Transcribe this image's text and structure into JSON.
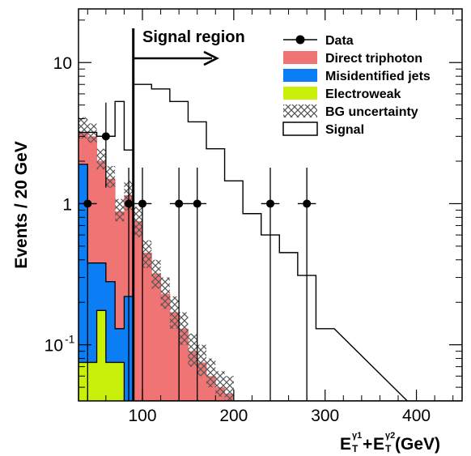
{
  "chart_data": {
    "type": "histogram",
    "ylabel": "Events / 20 GeV",
    "xlabel": {
      "prefix": "E",
      "t1_sub": "T",
      "t1_sup": "γ1",
      "plus": "+",
      "t2_sub": "T",
      "t2_sup": "γ2",
      "suffix": " (GeV)"
    },
    "xlim": [
      30,
      450
    ],
    "ylim": [
      0.04,
      24
    ],
    "y_scale": "log",
    "x_ticks": [
      {
        "value": 100,
        "label": "100"
      },
      {
        "value": 200,
        "label": "200"
      },
      {
        "value": 300,
        "label": "300"
      },
      {
        "value": 400,
        "label": "400"
      }
    ],
    "y_ticks": [
      {
        "value": 10,
        "label": "10"
      },
      {
        "value": 1,
        "label": "1"
      },
      {
        "value": 0.1,
        "label": "10",
        "sup": "-1"
      }
    ],
    "bin_width": 10,
    "bin_edges_start": 30,
    "electroweak": [
      0.075,
      0.075,
      0.175,
      0.075,
      0.075,
      0.04,
      0.04,
      0.04,
      0.04,
      0.04,
      0.04,
      0.04,
      0.04,
      0.04,
      0.04,
      0.04,
      0.04,
      0.04,
      0.04,
      0.04,
      0.04,
      0.04,
      0.04,
      0.04,
      0.04,
      0.04,
      0.04,
      0.04,
      0.04,
      0.04,
      0.04,
      0.04,
      0.04,
      0.04,
      0.04,
      0.04,
      0.04,
      0.04,
      0.04,
      0.04,
      0.04,
      0.04
    ],
    "misid_jets": [
      1.9,
      0.38,
      0.38,
      0.28,
      0.13,
      0.22,
      0.04,
      0.04,
      0.04,
      0.04,
      0.04,
      0.04,
      0.04,
      0.04,
      0.04,
      0.04,
      0.04,
      0.04,
      0.04,
      0.04,
      0.04,
      0.04,
      0.04,
      0.04,
      0.04,
      0.04,
      0.04,
      0.04,
      0.04,
      0.04,
      0.04,
      0.04,
      0.04,
      0.04,
      0.04,
      0.04,
      0.04,
      0.04,
      0.04,
      0.04,
      0.04,
      0.04
    ],
    "total_bg": [
      3.2,
      3.0,
      2.0,
      1.5,
      0.88,
      1.15,
      0.75,
      0.45,
      0.32,
      0.23,
      0.17,
      0.13,
      0.09,
      0.075,
      0.06,
      0.05,
      0.045,
      0.04,
      0.04,
      0.04,
      0.04,
      0.04,
      0.04,
      0.04,
      0.04,
      0.04,
      0.04,
      0.04,
      0.04,
      0.04,
      0.04,
      0.04,
      0.04,
      0.04,
      0.04,
      0.04,
      0.04,
      0.04,
      0.04,
      0.04,
      0.04,
      0.04
    ],
    "bg_unc_low": [
      2.9,
      2.7,
      1.75,
      1.3,
      0.75,
      0.9,
      0.58,
      0.35,
      0.25,
      0.18,
      0.13,
      0.1,
      0.07,
      0.06,
      0.05,
      0.043,
      0.04,
      0.04,
      0.04,
      0.04,
      0.04,
      0.04,
      0.04,
      0.04,
      0.04,
      0.04,
      0.04,
      0.04,
      0.04,
      0.04,
      0.04,
      0.04,
      0.04,
      0.04,
      0.04,
      0.04,
      0.04,
      0.04,
      0.04,
      0.04,
      0.04,
      0.04
    ],
    "bg_unc_high": [
      4.1,
      3.7,
      2.45,
      1.85,
      1.08,
      1.45,
      0.95,
      0.55,
      0.4,
      0.3,
      0.22,
      0.17,
      0.12,
      0.1,
      0.08,
      0.065,
      0.06,
      0.04,
      0.04,
      0.04,
      0.04,
      0.04,
      0.04,
      0.04,
      0.04,
      0.04,
      0.04,
      0.04,
      0.04,
      0.04,
      0.04,
      0.04,
      0.04,
      0.04,
      0.04,
      0.04,
      0.04,
      0.04,
      0.04,
      0.04,
      0.04,
      0.04
    ],
    "signal_x0": 90,
    "signal_bin_width": 20,
    "signal": [
      7.0,
      6.5,
      5.3,
      3.8,
      2.45,
      1.45,
      0.85,
      0.6,
      0.45,
      0.31,
      0.13
    ],
    "signal_end": 390,
    "data_points": [
      {
        "x": 40,
        "y": 1,
        "xerr": 10,
        "ylo": 0.04,
        "yhi": 1.8
      },
      {
        "x": 60,
        "y": 3,
        "xerr": 10,
        "ylo": 1.3,
        "yhi": 5.2
      },
      {
        "x": 85,
        "y": 1,
        "xerr": 5,
        "ylo": 0.04,
        "yhi": 1.8
      },
      {
        "x": 100,
        "y": 1,
        "xerr": 10,
        "ylo": 0.04,
        "yhi": 1.8
      },
      {
        "x": 140,
        "y": 1,
        "xerr": 10,
        "ylo": 0.04,
        "yhi": 1.8
      },
      {
        "x": 160,
        "y": 1,
        "xerr": 10,
        "ylo": 0.04,
        "yhi": 1.8
      },
      {
        "x": 240,
        "y": 1,
        "xerr": 10,
        "ylo": 0.04,
        "yhi": 1.8
      },
      {
        "x": 280,
        "y": 1,
        "xerr": 10,
        "ylo": 0.04,
        "yhi": 1.8
      }
    ],
    "signal_region_start": 90,
    "annotation": "Signal region",
    "legend": [
      {
        "key": "data",
        "label": "Data"
      },
      {
        "key": "direct",
        "label": "Direct triphoton"
      },
      {
        "key": "misid",
        "label": "Misidentified jets"
      },
      {
        "key": "ew",
        "label": "Electroweak"
      },
      {
        "key": "unc",
        "label": "BG uncertainty"
      },
      {
        "key": "signal",
        "label": "Signal"
      }
    ],
    "colors": {
      "direct": "#f07474",
      "misid": "#0b7ef5",
      "ew": "#c8f00a",
      "signal": "#000000",
      "hatch": "#555555"
    },
    "legend_position": "top-right",
    "grid": false
  }
}
